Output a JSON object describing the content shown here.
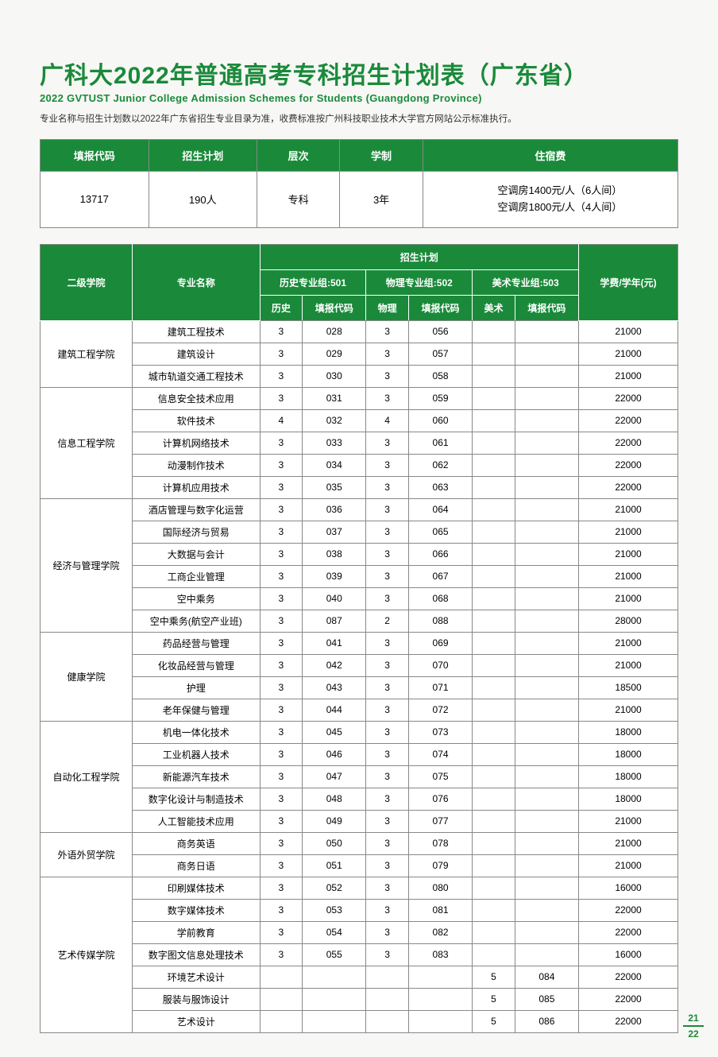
{
  "title_cn": "广科大2022年普通高考专科招生计划表（广东省）",
  "title_en": "2022 GVTUST Junior College Admission Schemes for Students (Guangdong Province)",
  "note": "专业名称与招生计划数以2022年广东省招生专业目录为准，收费标准按广州科技职业技术大学官方网站公示标准执行。",
  "summary": {
    "headers": [
      "填报代码",
      "招生计划",
      "层次",
      "学制",
      "住宿费"
    ],
    "code": "13717",
    "plan": "190人",
    "level": "专科",
    "years": "3年",
    "accom1": "空调房1400元/人（6人间）",
    "accom2": "空调房1800元/人（4人间）"
  },
  "main_headers": {
    "college": "二级学院",
    "major": "专业名称",
    "plan": "招生计划",
    "g501": "历史专业组:501",
    "g502": "物理专业组:502",
    "g503": "美术专业组:503",
    "hist": "历史",
    "code1": "填报代码",
    "phys": "物理",
    "code2": "填报代码",
    "art": "美术",
    "code3": "填报代码",
    "fee": "学费/学年(元)"
  },
  "colleges": [
    {
      "name": "建筑工程学院",
      "majors": [
        {
          "n": "建筑工程技术",
          "h": "3",
          "c1": "028",
          "p": "3",
          "c2": "056",
          "a": "",
          "c3": "",
          "f": "21000"
        },
        {
          "n": "建筑设计",
          "h": "3",
          "c1": "029",
          "p": "3",
          "c2": "057",
          "a": "",
          "c3": "",
          "f": "21000"
        },
        {
          "n": "城市轨道交通工程技术",
          "h": "3",
          "c1": "030",
          "p": "3",
          "c2": "058",
          "a": "",
          "c3": "",
          "f": "21000"
        }
      ]
    },
    {
      "name": "信息工程学院",
      "majors": [
        {
          "n": "信息安全技术应用",
          "h": "3",
          "c1": "031",
          "p": "3",
          "c2": "059",
          "a": "",
          "c3": "",
          "f": "22000"
        },
        {
          "n": "软件技术",
          "h": "4",
          "c1": "032",
          "p": "4",
          "c2": "060",
          "a": "",
          "c3": "",
          "f": "22000"
        },
        {
          "n": "计算机网络技术",
          "h": "3",
          "c1": "033",
          "p": "3",
          "c2": "061",
          "a": "",
          "c3": "",
          "f": "22000"
        },
        {
          "n": "动漫制作技术",
          "h": "3",
          "c1": "034",
          "p": "3",
          "c2": "062",
          "a": "",
          "c3": "",
          "f": "22000"
        },
        {
          "n": "计算机应用技术",
          "h": "3",
          "c1": "035",
          "p": "3",
          "c2": "063",
          "a": "",
          "c3": "",
          "f": "22000"
        }
      ]
    },
    {
      "name": "经济与管理学院",
      "majors": [
        {
          "n": "酒店管理与数字化运营",
          "h": "3",
          "c1": "036",
          "p": "3",
          "c2": "064",
          "a": "",
          "c3": "",
          "f": "21000"
        },
        {
          "n": "国际经济与贸易",
          "h": "3",
          "c1": "037",
          "p": "3",
          "c2": "065",
          "a": "",
          "c3": "",
          "f": "21000"
        },
        {
          "n": "大数据与会计",
          "h": "3",
          "c1": "038",
          "p": "3",
          "c2": "066",
          "a": "",
          "c3": "",
          "f": "21000"
        },
        {
          "n": "工商企业管理",
          "h": "3",
          "c1": "039",
          "p": "3",
          "c2": "067",
          "a": "",
          "c3": "",
          "f": "21000"
        },
        {
          "n": "空中乘务",
          "h": "3",
          "c1": "040",
          "p": "3",
          "c2": "068",
          "a": "",
          "c3": "",
          "f": "21000"
        },
        {
          "n": "空中乘务(航空产业班)",
          "h": "3",
          "c1": "087",
          "p": "2",
          "c2": "088",
          "a": "",
          "c3": "",
          "f": "28000"
        }
      ]
    },
    {
      "name": "健康学院",
      "majors": [
        {
          "n": "药品经营与管理",
          "h": "3",
          "c1": "041",
          "p": "3",
          "c2": "069",
          "a": "",
          "c3": "",
          "f": "21000"
        },
        {
          "n": "化妆品经营与管理",
          "h": "3",
          "c1": "042",
          "p": "3",
          "c2": "070",
          "a": "",
          "c3": "",
          "f": "21000"
        },
        {
          "n": "护理",
          "h": "3",
          "c1": "043",
          "p": "3",
          "c2": "071",
          "a": "",
          "c3": "",
          "f": "18500"
        },
        {
          "n": "老年保健与管理",
          "h": "3",
          "c1": "044",
          "p": "3",
          "c2": "072",
          "a": "",
          "c3": "",
          "f": "21000"
        }
      ]
    },
    {
      "name": "自动化工程学院",
      "majors": [
        {
          "n": "机电一体化技术",
          "h": "3",
          "c1": "045",
          "p": "3",
          "c2": "073",
          "a": "",
          "c3": "",
          "f": "18000"
        },
        {
          "n": "工业机器人技术",
          "h": "3",
          "c1": "046",
          "p": "3",
          "c2": "074",
          "a": "",
          "c3": "",
          "f": "18000"
        },
        {
          "n": "新能源汽车技术",
          "h": "3",
          "c1": "047",
          "p": "3",
          "c2": "075",
          "a": "",
          "c3": "",
          "f": "18000"
        },
        {
          "n": "数字化设计与制造技术",
          "h": "3",
          "c1": "048",
          "p": "3",
          "c2": "076",
          "a": "",
          "c3": "",
          "f": "18000"
        },
        {
          "n": "人工智能技术应用",
          "h": "3",
          "c1": "049",
          "p": "3",
          "c2": "077",
          "a": "",
          "c3": "",
          "f": "21000"
        }
      ]
    },
    {
      "name": "外语外贸学院",
      "majors": [
        {
          "n": "商务英语",
          "h": "3",
          "c1": "050",
          "p": "3",
          "c2": "078",
          "a": "",
          "c3": "",
          "f": "21000"
        },
        {
          "n": "商务日语",
          "h": "3",
          "c1": "051",
          "p": "3",
          "c2": "079",
          "a": "",
          "c3": "",
          "f": "21000"
        }
      ]
    },
    {
      "name": "艺术传媒学院",
      "majors": [
        {
          "n": "印刷媒体技术",
          "h": "3",
          "c1": "052",
          "p": "3",
          "c2": "080",
          "a": "",
          "c3": "",
          "f": "16000"
        },
        {
          "n": "数字媒体技术",
          "h": "3",
          "c1": "053",
          "p": "3",
          "c2": "081",
          "a": "",
          "c3": "",
          "f": "22000"
        },
        {
          "n": "学前教育",
          "h": "3",
          "c1": "054",
          "p": "3",
          "c2": "082",
          "a": "",
          "c3": "",
          "f": "22000"
        },
        {
          "n": "数字图文信息处理技术",
          "h": "3",
          "c1": "055",
          "p": "3",
          "c2": "083",
          "a": "",
          "c3": "",
          "f": "16000"
        },
        {
          "n": "环境艺术设计",
          "h": "",
          "c1": "",
          "p": "",
          "c2": "",
          "a": "5",
          "c3": "084",
          "f": "22000"
        },
        {
          "n": "服装与服饰设计",
          "h": "",
          "c1": "",
          "p": "",
          "c2": "",
          "a": "5",
          "c3": "085",
          "f": "22000"
        },
        {
          "n": "艺术设计",
          "h": "",
          "c1": "",
          "p": "",
          "c2": "",
          "a": "5",
          "c3": "086",
          "f": "22000"
        }
      ]
    }
  ],
  "page_top": "21",
  "page_bottom": "22"
}
